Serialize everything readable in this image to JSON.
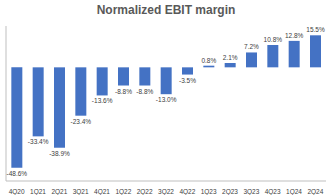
{
  "chart_data": {
    "type": "bar",
    "title": "Normalized EBIT margin",
    "categories": [
      "4Q20",
      "1Q21",
      "2Q21",
      "3Q21",
      "4Q21",
      "1Q22",
      "2Q22",
      "3Q22",
      "4Q22",
      "1Q23",
      "2Q23",
      "3Q23",
      "4Q23",
      "1Q24",
      "2Q24"
    ],
    "values": [
      -48.6,
      -33.4,
      -38.9,
      -23.4,
      -13.6,
      -8.8,
      -8.8,
      -13.0,
      -3.5,
      0.8,
      2.1,
      7.2,
      10.8,
      12.8,
      15.5
    ],
    "value_labels": [
      "-48.6%",
      "-33.4%",
      "-38.9%",
      "-23.4%",
      "-13.6%",
      "-8.8%",
      "-8.8%",
      "-13.0%",
      "-3.5%",
      "0.8%",
      "2.1%",
      "7.2%",
      "10.8%",
      "12.8%",
      "15.5%"
    ],
    "color": "#4472c4",
    "ylim": [
      -55,
      20
    ],
    "data_labels": true,
    "tick_labels": "x",
    "grid": false
  }
}
